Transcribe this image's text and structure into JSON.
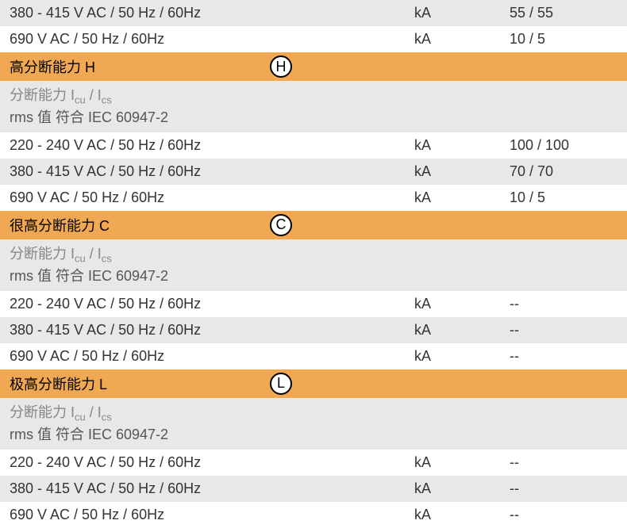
{
  "colors": {
    "header_bg": "#f0a952",
    "row_gray": "#e8e8e8",
    "row_white": "#ffffff",
    "text_main": "#333333",
    "text_light": "#888888"
  },
  "top_rows": [
    {
      "label": "380 - 415 V AC / 50 Hz / 60Hz",
      "unit": "kA",
      "value": "55 / 55",
      "bg": "gray"
    },
    {
      "label": "690 V AC / 50 Hz / 60Hz",
      "unit": "kA",
      "value": "10 / 5",
      "bg": "white"
    }
  ],
  "sections": [
    {
      "title": "高分断能力 H",
      "badge": "H",
      "subheader_line1_part1": "分断能力 I",
      "subheader_line1_sub1": "cu",
      "subheader_line1_slash": " / I",
      "subheader_line1_sub2": "cs",
      "subheader_line2": "rms 值 符合 IEC 60947-2",
      "rows": [
        {
          "label": "220 - 240 V AC / 50 Hz / 60Hz",
          "unit": "kA",
          "value": "100 / 100",
          "bg": "white"
        },
        {
          "label": "380 - 415 V AC / 50 Hz / 60Hz",
          "unit": "kA",
          "value": "70 / 70",
          "bg": "gray"
        },
        {
          "label": "690 V AC / 50 Hz / 60Hz",
          "unit": "kA",
          "value": "10 / 5",
          "bg": "white"
        }
      ]
    },
    {
      "title": "很高分断能力 C",
      "badge": "C",
      "subheader_line1_part1": "分断能力 I",
      "subheader_line1_sub1": "cu",
      "subheader_line1_slash": " / I",
      "subheader_line1_sub2": "cs",
      "subheader_line2": "rms 值 符合 IEC 60947-2",
      "rows": [
        {
          "label": "220 - 240 V AC / 50 Hz / 60Hz",
          "unit": "kA",
          "value": "--",
          "bg": "white"
        },
        {
          "label": "380 - 415 V AC / 50 Hz / 60Hz",
          "unit": "kA",
          "value": "--",
          "bg": "gray"
        },
        {
          "label": "690 V AC / 50 Hz / 60Hz",
          "unit": "kA",
          "value": "--",
          "bg": "white"
        }
      ]
    },
    {
      "title": "极高分断能力 L",
      "badge": "L",
      "subheader_line1_part1": "分断能力 I",
      "subheader_line1_sub1": "cu",
      "subheader_line1_slash": " / I",
      "subheader_line1_sub2": "cs",
      "subheader_line2": "rms 值 符合 IEC 60947-2",
      "rows": [
        {
          "label": "220 - 240 V AC / 50 Hz / 60Hz",
          "unit": "kA",
          "value": "--",
          "bg": "white"
        },
        {
          "label": "380 - 415 V AC / 50 Hz / 60Hz",
          "unit": "kA",
          "value": "--",
          "bg": "gray"
        },
        {
          "label": "690 V AC / 50 Hz / 60Hz",
          "unit": "kA",
          "value": "--",
          "bg": "white"
        }
      ]
    }
  ]
}
